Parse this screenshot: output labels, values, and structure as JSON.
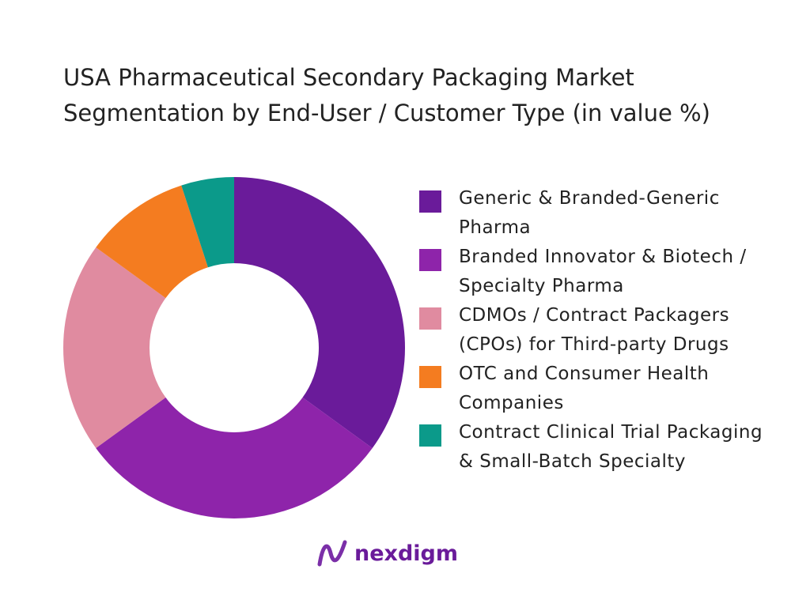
{
  "chart_data": {
    "type": "donut",
    "title": "USA Pharmaceutical Secondary Packaging Market Segmentation by End-User / Customer Type (in value %)",
    "categories": [
      "Generic & Branded-Generic Pharma",
      "Branded Innovator & Biotech / Specialty Pharma",
      "CDMOs / Contract Packagers (CPOs) for Third-party Drugs",
      "OTC and Consumer Health Companies",
      "Contract Clinical Trial Packaging & Small-Batch Specialty"
    ],
    "values": [
      35,
      30,
      20,
      10,
      5
    ],
    "colors": [
      "#6a1b9a",
      "#8e24aa",
      "#e08ba0",
      "#f47c20",
      "#0b9a8a"
    ],
    "legend": "right"
  },
  "brand": "nexdigm"
}
